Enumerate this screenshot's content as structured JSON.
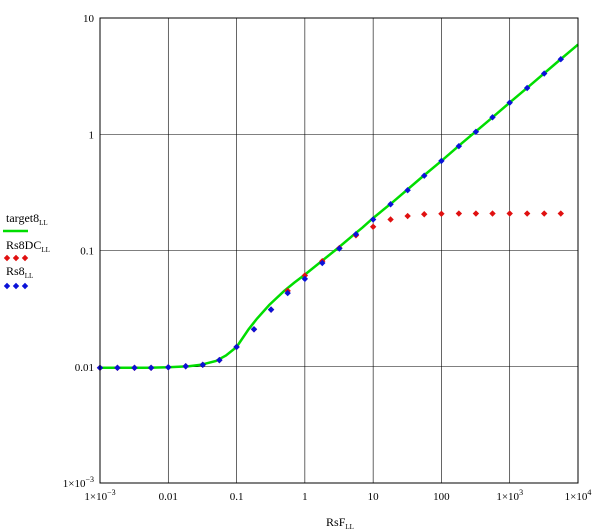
{
  "chart_data": {
    "type": "line",
    "xlabel": "RsF",
    "xlabel_sub": "LL",
    "x_scale": "log",
    "y_scale": "log",
    "xlim": [
      0.001,
      10000
    ],
    "ylim": [
      0.001,
      10
    ],
    "x_ticks": [
      0.001,
      0.01,
      0.1,
      1,
      10,
      100,
      1000,
      10000
    ],
    "x_tick_labels": [
      "1×10",
      "0.01",
      "0.1",
      "1",
      "10",
      "100",
      "1×10",
      "1×10"
    ],
    "x_tick_exp": [
      "−3",
      "",
      "",
      "",
      "",
      "",
      "3",
      "4"
    ],
    "y_ticks": [
      0.001,
      0.01,
      0.1,
      1,
      10
    ],
    "y_tick_labels": [
      "1×10",
      "0.01",
      "0.1",
      "1",
      "10"
    ],
    "y_tick_exp": [
      "−3",
      "",
      "",
      "",
      ""
    ],
    "grid": "major ticks on both axes",
    "legend_position": "left",
    "series": [
      {
        "name": "target8",
        "name_sub": "LL",
        "style": "line",
        "color": "#00dd00",
        "x": [
          0.001,
          0.002,
          0.005,
          0.01,
          0.02,
          0.03,
          0.05,
          0.07,
          0.1,
          0.15,
          0.2,
          0.3,
          0.5,
          0.7,
          1,
          2,
          3,
          5,
          7,
          10,
          20,
          50,
          100,
          200,
          500,
          1000,
          2000,
          5000,
          10000
        ],
        "y": [
          0.0098,
          0.0098,
          0.0098,
          0.0099,
          0.0101,
          0.0104,
          0.0112,
          0.0125,
          0.0148,
          0.021,
          0.026,
          0.034,
          0.045,
          0.053,
          0.062,
          0.086,
          0.104,
          0.134,
          0.158,
          0.19,
          0.265,
          0.42,
          0.59,
          0.84,
          1.32,
          1.87,
          2.64,
          4.18,
          5.9
        ]
      },
      {
        "name": "Rs8DC",
        "name_sub": "LL",
        "style": "markers",
        "color": "#e01010",
        "x": [
          0.001,
          0.0018,
          0.0032,
          0.0056,
          0.01,
          0.018,
          0.032,
          0.056,
          0.1,
          0.18,
          0.32,
          0.56,
          1,
          1.8,
          3.2,
          5.6,
          10,
          18,
          32,
          56,
          100,
          180,
          320,
          560,
          1000,
          1800,
          3200,
          5600
        ],
        "y": [
          0.0098,
          0.0098,
          0.0098,
          0.0098,
          0.0099,
          0.0101,
          0.0104,
          0.0114,
          0.0148,
          0.021,
          0.031,
          0.045,
          0.061,
          0.081,
          0.105,
          0.135,
          0.16,
          0.185,
          0.198,
          0.205,
          0.207,
          0.208,
          0.208,
          0.208,
          0.208,
          0.208,
          0.208,
          0.208
        ]
      },
      {
        "name": "Rs8",
        "name_sub": "LL",
        "style": "markers",
        "color": "#0a12d8",
        "x": [
          0.001,
          0.0018,
          0.0032,
          0.0056,
          0.01,
          0.018,
          0.032,
          0.056,
          0.1,
          0.18,
          0.32,
          0.56,
          1,
          1.8,
          3.2,
          5.6,
          10,
          18,
          32,
          56,
          100,
          180,
          320,
          560,
          1000,
          1800,
          3200,
          5600
        ],
        "y": [
          0.0098,
          0.0098,
          0.0098,
          0.0098,
          0.0099,
          0.0101,
          0.0104,
          0.0114,
          0.0148,
          0.021,
          0.031,
          0.043,
          0.057,
          0.078,
          0.104,
          0.138,
          0.185,
          0.25,
          0.33,
          0.44,
          0.59,
          0.79,
          1.05,
          1.4,
          1.87,
          2.5,
          3.33,
          4.42
        ]
      }
    ]
  }
}
